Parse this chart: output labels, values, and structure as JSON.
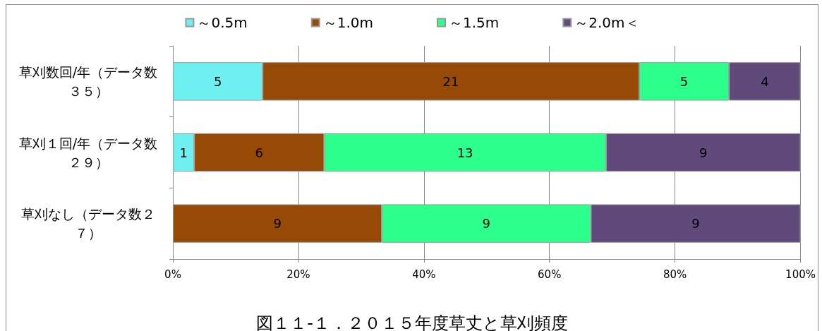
{
  "chart_data": {
    "type": "bar",
    "orientation": "horizontal",
    "stacked": true,
    "title": "図１１-１．２０１５年度草丈と草刈頻度",
    "categories": [
      "草刈数回/年（データ数３５）",
      "草刈１回/年（データ数２９）",
      "草刈なし（データ数２７）"
    ],
    "series": [
      {
        "name": "～0.5m",
        "color": "#6ff0f0",
        "values": [
          14.3,
          3.4,
          null
        ]
      },
      {
        "name": "～1.0m",
        "color": "#974a06",
        "values": [
          60,
          20.7,
          33.3
        ]
      },
      {
        "name": "～1.5m",
        "color": "#2cff8c",
        "values": [
          14.3,
          44.9,
          33.3
        ]
      },
      {
        "name": "～2.0m＜",
        "color": "#604a7b",
        "values": [
          11.4,
          31.0,
          33.4
        ]
      }
    ],
    "annotations": [
      "5",
      "21",
      "5",
      "4",
      "1",
      "6",
      "13",
      "9",
      "9",
      "9",
      "9"
    ],
    "xlim": [
      0,
      100
    ],
    "xticks": [
      {
        "value": 0,
        "label": "0%"
      },
      {
        "value": 20,
        "label": "20%"
      },
      {
        "value": 40,
        "label": "40%"
      },
      {
        "value": 60,
        "label": "60%"
      },
      {
        "value": 80,
        "label": "80%"
      },
      {
        "value": 100,
        "label": "100%"
      }
    ],
    "grid": "x",
    "legend": "top"
  }
}
